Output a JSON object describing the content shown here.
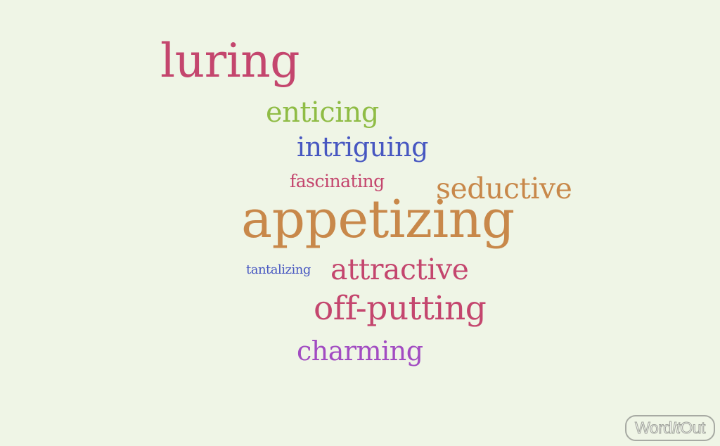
{
  "word_cloud": {
    "words": [
      {
        "id": "luring",
        "text": "luring",
        "color": "#c4466e"
      },
      {
        "id": "enticing",
        "text": "enticing",
        "color": "#8fbc45"
      },
      {
        "id": "intriguing",
        "text": "intriguing",
        "color": "#4757c1"
      },
      {
        "id": "fascinating",
        "text": "fascinating",
        "color": "#c4466e"
      },
      {
        "id": "seductive",
        "text": "seductive",
        "color": "#c8884a"
      },
      {
        "id": "appetizing",
        "text": "appetizing",
        "color": "#c8884a"
      },
      {
        "id": "tantalizing",
        "text": "tantalizing",
        "color": "#4757c1"
      },
      {
        "id": "attractive",
        "text": "attractive",
        "color": "#c4466e"
      },
      {
        "id": "offputting",
        "text": "off-putting",
        "color": "#c4466e"
      },
      {
        "id": "charming",
        "text": "charming",
        "color": "#a24cc2"
      }
    ]
  },
  "branding": {
    "logo_part1": "Word",
    "logo_part2": "It",
    "logo_part3": "Out"
  },
  "colors": {
    "background": "#eff5e6"
  }
}
